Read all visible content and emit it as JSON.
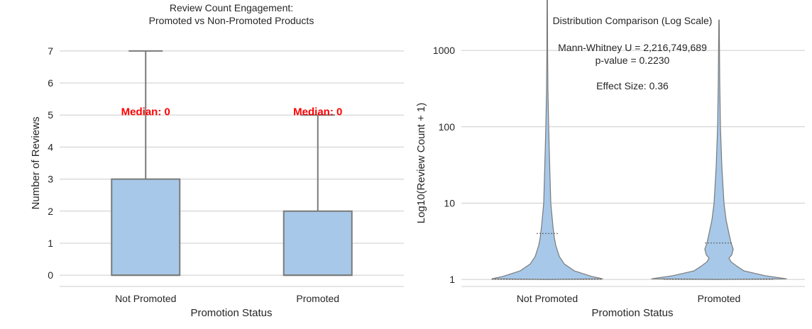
{
  "chart_data": [
    {
      "type": "box",
      "title": "Review Count Engagement:\nPromoted vs Non-Promoted Products",
      "xlabel": "Promotion Status",
      "ylabel": "Number of Reviews",
      "categories": [
        "Not Promoted",
        "Promoted"
      ],
      "ylim": [
        -0.35,
        7.35
      ],
      "yticks": [
        0,
        1,
        2,
        3,
        4,
        5,
        6,
        7
      ],
      "grid": "horizontal",
      "boxes": [
        {
          "category": "Not Promoted",
          "whisker_low": 0,
          "q1": 0,
          "median": 0,
          "q3": 3,
          "whisker_high": 7
        },
        {
          "category": "Promoted",
          "whisker_low": 0,
          "q1": 0,
          "median": 0,
          "q3": 2,
          "whisker_high": 5
        }
      ],
      "annotations": [
        {
          "category": "Not Promoted",
          "text": "Median: 0",
          "y": 5.1
        },
        {
          "category": "Promoted",
          "text": "Median: 0",
          "y": 5.1
        }
      ],
      "colors": {
        "box_fill": "#a7c8e8",
        "box_edge": "#7a7a7a",
        "annotation": "#ff0000",
        "grid": "#cccccc"
      }
    },
    {
      "type": "violin",
      "title": "Distribution Comparison (Log Scale)",
      "xlabel": "Promotion Status",
      "ylabel": "Log10(Review Count + 1)",
      "categories": [
        "Not Promoted",
        "Promoted"
      ],
      "yscale": "log",
      "ylim": [
        0.81,
        1380
      ],
      "yticks": [
        1,
        10,
        100,
        1000
      ],
      "ytick_labels": [
        "1",
        "10",
        "100",
        "1000"
      ],
      "grid": "horizontal",
      "violins": [
        {
          "category": "Not Promoted",
          "min": 1,
          "q1": 1,
          "median": 1,
          "q3": 4,
          "max": 4800
        },
        {
          "category": "Promoted",
          "min": 1,
          "q1": 1,
          "median": 1,
          "q3": 3,
          "max": 2500
        }
      ],
      "stats_text": [
        "Mann-Whitney U = 2,216,749,689",
        "p-value = 0.2230",
        "",
        "Effect Size: 0.36"
      ],
      "colors": {
        "violin_fill": "#a7c8e8",
        "violin_edge": "#7a7a7a",
        "grid": "#cccccc"
      }
    }
  ]
}
